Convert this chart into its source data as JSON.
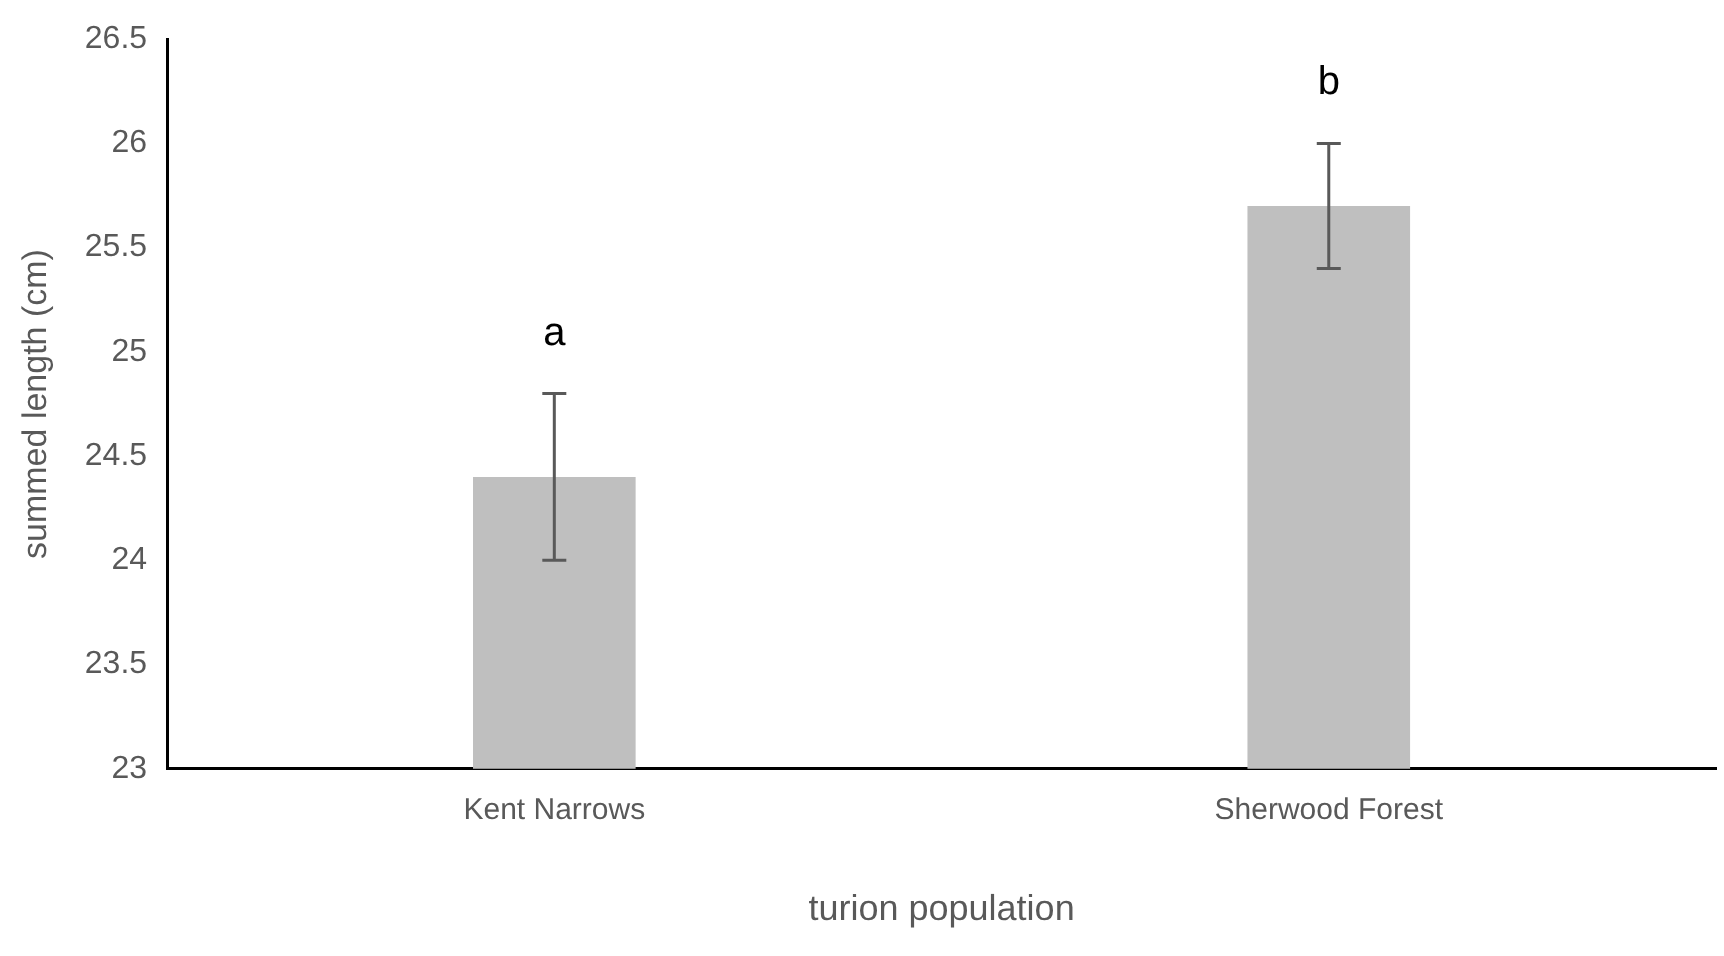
{
  "chart_data": {
    "type": "bar",
    "xlabel": "turion population",
    "ylabel": "summed length (cm)",
    "categories": [
      "Kent Narrows",
      "Sherwood Forest"
    ],
    "values": [
      24.4,
      25.7
    ],
    "color": "#bfbfbf",
    "errors": [
      0.4,
      0.3
    ],
    "ylim": [
      23,
      26.5
    ],
    "yticks": [
      23,
      23.5,
      24,
      24.5,
      25,
      25.5,
      26,
      26.5
    ],
    "grid": false,
    "legend": false,
    "annotations": [
      "a",
      "b"
    ]
  }
}
